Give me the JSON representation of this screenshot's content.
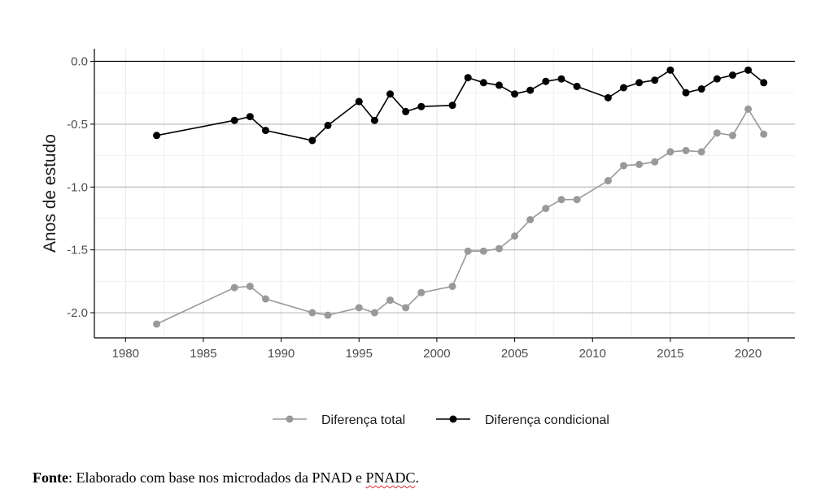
{
  "chart_data": {
    "type": "line",
    "ylabel": "Anos de estudo",
    "xlabel": "",
    "xlim": [
      1978,
      2023
    ],
    "ylim": [
      -2.2,
      0.1
    ],
    "x_ticks": [
      1980,
      1985,
      1990,
      1995,
      2000,
      2005,
      2010,
      2015,
      2020
    ],
    "y_ticks": [
      0.0,
      -0.5,
      -1.0,
      -1.5,
      -2.0
    ],
    "y_tick_labels": [
      "0.0",
      "-0.5",
      "-1.0",
      "-1.5",
      "-2.0"
    ],
    "grid": true,
    "legend_position": "bottom",
    "series": [
      {
        "name": "Diferença total",
        "color": "#999999",
        "x": [
          1982,
          1987,
          1988,
          1989,
          1992,
          1993,
          1995,
          1996,
          1997,
          1998,
          1999,
          2001,
          2002,
          2003,
          2004,
          2005,
          2006,
          2007,
          2008,
          2009,
          2011,
          2012,
          2013,
          2014,
          2015,
          2016,
          2017,
          2018,
          2019,
          2020,
          2021
        ],
        "values": [
          -2.09,
          -1.8,
          -1.79,
          -1.89,
          -2.0,
          -2.02,
          -1.96,
          -2.0,
          -1.9,
          -1.96,
          -1.84,
          -1.79,
          -1.51,
          -1.51,
          -1.49,
          -1.39,
          -1.26,
          -1.17,
          -1.1,
          -1.1,
          -0.95,
          -0.83,
          -0.82,
          -0.8,
          -0.72,
          -0.71,
          -0.72,
          -0.57,
          -0.59,
          -0.38,
          -0.58
        ]
      },
      {
        "name": "Diferença condicional",
        "color": "#000000",
        "x": [
          1982,
          1987,
          1988,
          1989,
          1992,
          1993,
          1995,
          1996,
          1997,
          1998,
          1999,
          2001,
          2002,
          2003,
          2004,
          2005,
          2006,
          2007,
          2008,
          2009,
          2011,
          2012,
          2013,
          2014,
          2015,
          2016,
          2017,
          2018,
          2019,
          2020,
          2021
        ],
        "values": [
          -0.59,
          -0.47,
          -0.44,
          -0.55,
          -0.63,
          -0.51,
          -0.32,
          -0.47,
          -0.26,
          -0.4,
          -0.36,
          -0.35,
          -0.13,
          -0.17,
          -0.19,
          -0.26,
          -0.23,
          -0.16,
          -0.14,
          -0.2,
          -0.29,
          -0.21,
          -0.17,
          -0.15,
          -0.07,
          -0.25,
          -0.22,
          -0.14,
          -0.11,
          -0.07,
          -0.17
        ]
      }
    ]
  },
  "source": {
    "label": "Fonte",
    "separator": ": ",
    "text_before": "Elaborado com base nos microdados da PNAD e ",
    "text_flagged": "PNADC",
    "text_after": "."
  }
}
